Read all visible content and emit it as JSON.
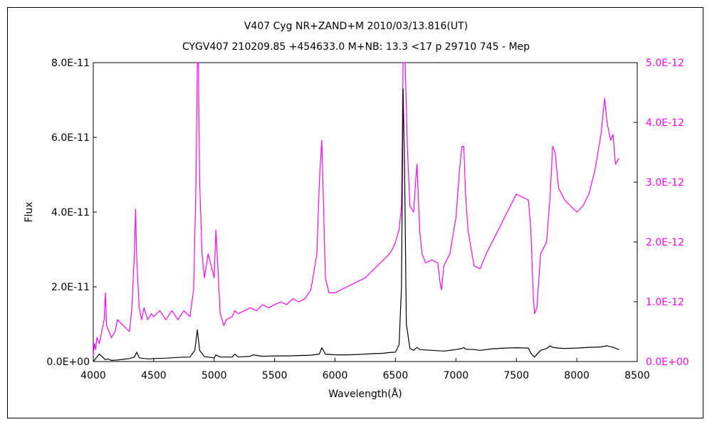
{
  "chart_data": {
    "type": "line",
    "title": "V407 Cyg    NR+ZAND+M    2010/03/13.816(UT)",
    "subtitle": "CYGV407 210209.85 +454633.0 M+NB: 13.3 <17 p 29710 745 - Mep",
    "xlabel": "Wavelength(Å)",
    "ylabel": "Flux",
    "xlim": [
      4000,
      8500
    ],
    "ylim": [
      0,
      8e-11
    ],
    "y2lim": [
      0,
      5e-12
    ],
    "x_ticks": [
      "4000",
      "4500",
      "5000",
      "5500",
      "6000",
      "6500",
      "7000",
      "7500",
      "8000",
      "8500"
    ],
    "y_ticks": [
      "0.0E+00",
      "2.0E-11",
      "4.0E-11",
      "6.0E-11",
      "8.0E-11"
    ],
    "y2_ticks": [
      "0.0E+00",
      "1.0E-12",
      "2.0E-12",
      "3.0E-12",
      "4.0E-12",
      "5.0E-12"
    ],
    "grid": false,
    "series": [
      {
        "axis": "left",
        "color": "#000000",
        "x": [
          4000,
          4050,
          4100,
          4120,
          4150,
          4200,
          4250,
          4300,
          4340,
          4360,
          4380,
          4420,
          4470,
          4500,
          4600,
          4700,
          4800,
          4840,
          4861,
          4880,
          4920,
          5000,
          5015,
          5050,
          5100,
          5150,
          5170,
          5200,
          5300,
          5320,
          5400,
          5500,
          5600,
          5700,
          5800,
          5870,
          5890,
          5920,
          6000,
          6100,
          6200,
          6300,
          6400,
          6450,
          6500,
          6530,
          6550,
          6563,
          6575,
          6590,
          6620,
          6650,
          6678,
          6700,
          6800,
          6900,
          7000,
          7050,
          7065,
          7080,
          7150,
          7200,
          7300,
          7400,
          7500,
          7600,
          7620,
          7650,
          7700,
          7750,
          7780,
          7800,
          7850,
          7900,
          8000,
          8100,
          8200,
          8250,
          8300,
          8350
        ],
        "y": [
          0.0,
          2e-12,
          5e-13,
          7e-13,
          3e-13,
          4e-13,
          6e-13,
          8e-13,
          1.2e-12,
          2.5e-12,
          1e-12,
          8e-13,
          7e-13,
          8e-13,
          9e-13,
          1.1e-12,
          1.2e-12,
          3e-12,
          8.5e-12,
          3e-12,
          1.3e-12,
          1e-12,
          1.8e-12,
          1.2e-12,
          1.2e-12,
          1.2e-12,
          2e-12,
          1.2e-12,
          1.4e-12,
          1.8e-12,
          1.4e-12,
          1.5e-12,
          1.5e-12,
          1.6e-12,
          1.7e-12,
          2e-12,
          3.7e-12,
          2e-12,
          1.8e-12,
          1.8e-12,
          1.9e-12,
          2.1e-12,
          2.2e-12,
          2.4e-12,
          2.5e-12,
          4.5e-12,
          2e-11,
          7.3e-11,
          5.2e-11,
          1e-11,
          3.5e-12,
          3e-12,
          3.8e-12,
          3.2e-12,
          3e-12,
          2.8e-12,
          3.2e-12,
          3.5e-12,
          3.8e-12,
          3.3e-12,
          3.2e-12,
          3e-12,
          3.4e-12,
          3.6e-12,
          3.7e-12,
          3.6e-12,
          2.2e-12,
          1.2e-12,
          3e-12,
          3.5e-12,
          4.2e-12,
          3.8e-12,
          3.6e-12,
          3.5e-12,
          3.6e-12,
          3.8e-12,
          3.9e-12,
          4.2e-12,
          3.8e-12,
          3.2e-12
        ]
      },
      {
        "axis": "right",
        "color": "#ff00ff",
        "x": [
          4000,
          4010,
          4020,
          4030,
          4050,
          4070,
          4090,
          4101,
          4110,
          4130,
          4150,
          4180,
          4200,
          4250,
          4300,
          4320,
          4340,
          4350,
          4360,
          4380,
          4400,
          4420,
          4450,
          4480,
          4500,
          4550,
          4600,
          4650,
          4700,
          4750,
          4800,
          4830,
          4850,
          4861,
          4870,
          4880,
          4900,
          4920,
          4950,
          5000,
          5015,
          5030,
          5050,
          5080,
          5100,
          5150,
          5170,
          5200,
          5250,
          5300,
          5350,
          5400,
          5450,
          5500,
          5550,
          5600,
          5650,
          5700,
          5750,
          5800,
          5850,
          5870,
          5890,
          5900,
          5920,
          5950,
          6000,
          6050,
          6100,
          6150,
          6200,
          6250,
          6300,
          6350,
          6400,
          6450,
          6480,
          6500,
          6530,
          6550,
          6563,
          6580,
          6600,
          6620,
          6650,
          6670,
          6678,
          6690,
          6700,
          6720,
          6750,
          6800,
          6850,
          6870,
          6880,
          6900,
          6950,
          7000,
          7030,
          7050,
          7065,
          7080,
          7100,
          7150,
          7200,
          7250,
          7300,
          7350,
          7400,
          7450,
          7500,
          7550,
          7600,
          7620,
          7640,
          7650,
          7670,
          7700,
          7750,
          7780,
          7800,
          7820,
          7850,
          7900,
          7950,
          8000,
          8050,
          8100,
          8150,
          8200,
          8230,
          8250,
          8280,
          8300,
          8320,
          8350
        ],
        "y": [
          1e-13,
          3e-13,
          2e-13,
          4e-13,
          3e-13,
          5e-13,
          7e-13,
          1.15e-12,
          6e-13,
          5e-13,
          4e-13,
          5e-13,
          7e-13,
          6e-13,
          5e-13,
          9e-13,
          1.8e-12,
          2.55e-12,
          1.7e-12,
          9e-13,
          7e-13,
          9e-13,
          7e-13,
          8e-13,
          7.5e-13,
          8.5e-13,
          7e-13,
          8.5e-13,
          7e-13,
          8.5e-13,
          7.5e-13,
          1.2e-12,
          3e-12,
          5e-12,
          5e-12,
          3e-12,
          1.8e-12,
          1.4e-12,
          1.8e-12,
          1.4e-12,
          2.2e-12,
          1.6e-12,
          8e-13,
          6e-13,
          7e-13,
          7.5e-13,
          8.5e-13,
          8e-13,
          8.5e-13,
          9e-13,
          8.5e-13,
          9.5e-13,
          9e-13,
          9.5e-13,
          1e-12,
          9.5e-13,
          1.05e-12,
          1e-12,
          1.05e-12,
          1.2e-12,
          1.8e-12,
          3e-12,
          3.7e-12,
          3e-12,
          1.4e-12,
          1.15e-12,
          1.15e-12,
          1.2e-12,
          1.25e-12,
          1.3e-12,
          1.35e-12,
          1.4e-12,
          1.5e-12,
          1.6e-12,
          1.7e-12,
          1.8e-12,
          1.9e-12,
          2e-12,
          2.2e-12,
          2.6e-12,
          5e-12,
          5e-12,
          3.5e-12,
          2.6e-12,
          2.5e-12,
          3.1e-12,
          3.3e-12,
          2.7e-12,
          2.2e-12,
          1.8e-12,
          1.65e-12,
          1.7e-12,
          1.65e-12,
          1.3e-12,
          1.2e-12,
          1.6e-12,
          1.8e-12,
          2.4e-12,
          3.2e-12,
          3.6e-12,
          3.6e-12,
          2.8e-12,
          2.2e-12,
          1.6e-12,
          1.55e-12,
          1.8e-12,
          2e-12,
          2.2e-12,
          2.4e-12,
          2.6e-12,
          2.8e-12,
          2.75e-12,
          2.7e-12,
          2.2e-12,
          1.1e-12,
          8e-13,
          9e-13,
          1.8e-12,
          2e-12,
          2.8e-12,
          3.6e-12,
          3.5e-12,
          2.9e-12,
          2.7e-12,
          2.6e-12,
          2.5e-12,
          2.6e-12,
          2.8e-12,
          3.2e-12,
          3.8e-12,
          4.4e-12,
          4e-12,
          3.7e-12,
          3.8e-12,
          3.3e-12,
          3.4e-12
        ]
      }
    ]
  }
}
